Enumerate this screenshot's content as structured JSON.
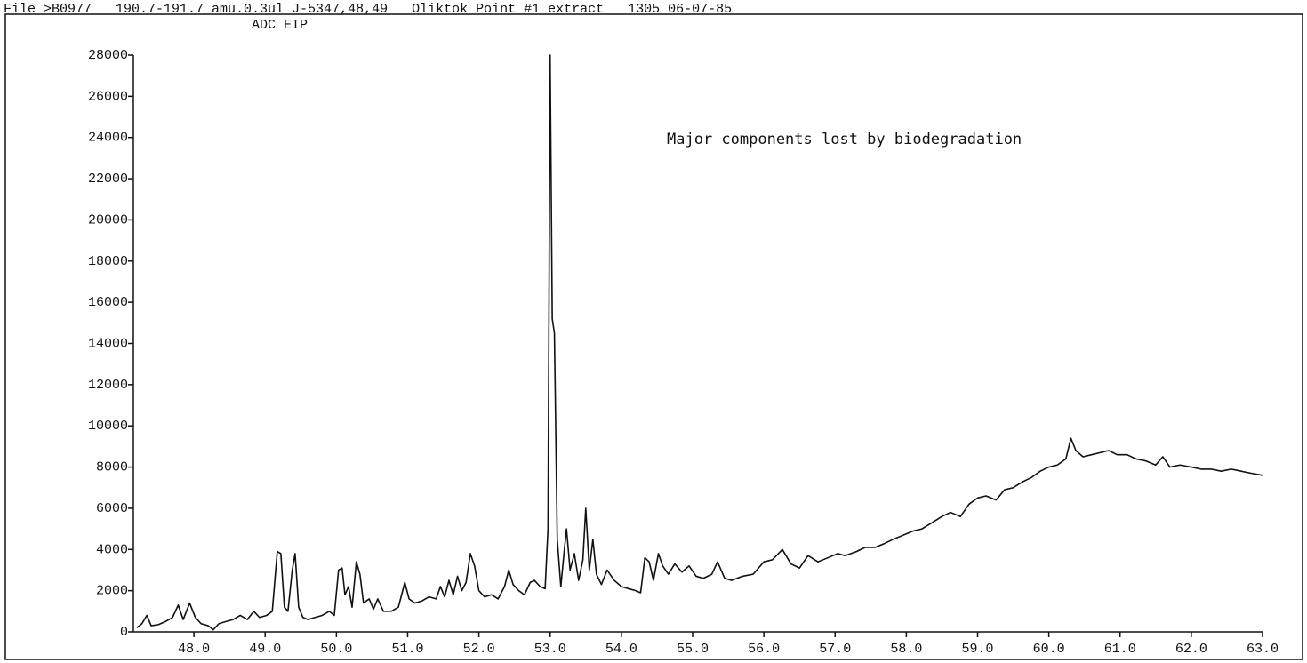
{
  "chart_data": {
    "type": "line",
    "title": "File >B0977   190.7-191.7 amu.0.3ul J-5347,48,49   Oliktok Point #1 extract   1305 06-07-85",
    "subtitle": "ADC EIP",
    "annotation": "Major components lost by biodegradation",
    "x": [
      47.2,
      47.27,
      47.34,
      47.4,
      47.5,
      47.6,
      47.7,
      47.78,
      47.85,
      47.94,
      48.02,
      48.1,
      48.2,
      48.27,
      48.35,
      48.45,
      48.55,
      48.65,
      48.75,
      48.84,
      48.92,
      49.02,
      49.1,
      49.17,
      49.22,
      49.27,
      49.32,
      49.38,
      49.42,
      49.47,
      49.53,
      49.6,
      49.7,
      49.8,
      49.9,
      49.97,
      50.03,
      50.08,
      50.12,
      50.17,
      50.22,
      50.28,
      50.33,
      50.38,
      50.46,
      50.52,
      50.58,
      50.66,
      50.77,
      50.87,
      50.96,
      51.02,
      51.1,
      51.2,
      51.3,
      51.4,
      51.46,
      51.52,
      51.58,
      51.64,
      51.7,
      51.76,
      51.82,
      51.88,
      51.94,
      52.0,
      52.08,
      52.18,
      52.27,
      52.36,
      52.42,
      52.48,
      52.56,
      52.64,
      52.72,
      52.78,
      52.86,
      52.93,
      52.97,
      53.0,
      53.03,
      53.06,
      53.1,
      53.15,
      53.2,
      53.23,
      53.28,
      53.34,
      53.4,
      53.46,
      53.5,
      53.55,
      53.6,
      53.65,
      53.72,
      53.8,
      53.9,
      54.0,
      54.1,
      54.2,
      54.27,
      54.33,
      54.39,
      54.45,
      54.52,
      54.58,
      54.66,
      54.75,
      54.85,
      54.95,
      55.05,
      55.15,
      55.27,
      55.35,
      55.45,
      55.55,
      55.7,
      55.85,
      56.0,
      56.12,
      56.26,
      56.38,
      56.5,
      56.62,
      56.76,
      56.9,
      57.04,
      57.14,
      57.3,
      57.42,
      57.56,
      57.7,
      57.82,
      57.96,
      58.1,
      58.22,
      58.36,
      58.5,
      58.62,
      58.76,
      58.88,
      59.0,
      59.12,
      59.26,
      59.38,
      59.5,
      59.64,
      59.76,
      59.88,
      60.0,
      60.12,
      60.24,
      60.31,
      60.38,
      60.48,
      60.6,
      60.72,
      60.84,
      60.96,
      61.1,
      61.22,
      61.36,
      61.5,
      61.6,
      61.7,
      61.84,
      62.0,
      62.14,
      62.28,
      62.42,
      62.56,
      62.7,
      62.84,
      63.0
    ],
    "series": [
      {
        "color": "#111111",
        "values": [
          200,
          400,
          800,
          300,
          350,
          500,
          700,
          1300,
          600,
          1400,
          700,
          400,
          300,
          100,
          400,
          500,
          600,
          800,
          600,
          1000,
          700,
          800,
          1000,
          3900,
          3800,
          1200,
          1000,
          3000,
          3800,
          1200,
          700,
          600,
          700,
          800,
          1000,
          800,
          3000,
          3100,
          1800,
          2200,
          1200,
          3400,
          2800,
          1400,
          1600,
          1100,
          1600,
          1000,
          1000,
          1200,
          2400,
          1600,
          1400,
          1500,
          1700,
          1600,
          2200,
          1700,
          2500,
          1800,
          2700,
          2000,
          2400,
          3800,
          3200,
          2000,
          1700,
          1800,
          1600,
          2200,
          3000,
          2300,
          2000,
          1800,
          2400,
          2500,
          2200,
          2100,
          5000,
          28000,
          15200,
          14500,
          4500,
          2200,
          4000,
          5000,
          3000,
          3800,
          2500,
          3500,
          6000,
          3000,
          4500,
          2800,
          2300,
          3000,
          2500,
          2200,
          2100,
          2000,
          1900,
          3600,
          3400,
          2500,
          3800,
          3200,
          2800,
          3300,
          2900,
          3200,
          2700,
          2600,
          2800,
          3400,
          2600,
          2500,
          2700,
          2800,
          3400,
          3500,
          4000,
          3300,
          3100,
          3700,
          3400,
          3600,
          3800,
          3700,
          3900,
          4100,
          4100,
          4300,
          4500,
          4700,
          4900,
          5000,
          5300,
          5600,
          5800,
          5600,
          6200,
          6500,
          6600,
          6400,
          6900,
          7000,
          7300,
          7500,
          7800,
          8000,
          8100,
          8400,
          9400,
          8800,
          8500,
          8600,
          8700,
          8800,
          8600,
          8600,
          8400,
          8300,
          8100,
          8500,
          8000,
          8100,
          8000,
          7900,
          7900,
          7800,
          7900,
          7800,
          7700,
          7600
        ]
      }
    ],
    "xlim": [
      47.15,
      63.0
    ],
    "ylim": [
      0,
      28000
    ],
    "xticks": [
      {
        "value": 48,
        "label": "48.0"
      },
      {
        "value": 49,
        "label": "49.0"
      },
      {
        "value": 50,
        "label": "50.0"
      },
      {
        "value": 51,
        "label": "51.0"
      },
      {
        "value": 52,
        "label": "52.0"
      },
      {
        "value": 53,
        "label": "53.0"
      },
      {
        "value": 54,
        "label": "54.0"
      },
      {
        "value": 55,
        "label": "55.0"
      },
      {
        "value": 56,
        "label": "56.0"
      },
      {
        "value": 57,
        "label": "57.0"
      },
      {
        "value": 58,
        "label": "58.0"
      },
      {
        "value": 59,
        "label": "59.0"
      },
      {
        "value": 60,
        "label": "60.0"
      },
      {
        "value": 61,
        "label": "61.0"
      },
      {
        "value": 62,
        "label": "62.0"
      },
      {
        "value": 63,
        "label": "63.0"
      }
    ],
    "yticks": [
      0,
      2000,
      4000,
      6000,
      8000,
      10000,
      12000,
      14000,
      16000,
      18000,
      20000,
      22000,
      24000,
      26000,
      28000
    ],
    "grid": false
  }
}
